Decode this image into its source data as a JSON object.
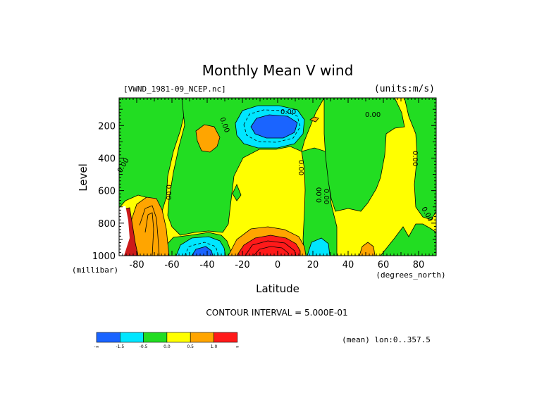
{
  "chart_data": {
    "type": "heatmap",
    "title": "Monthly Mean V wind",
    "dataset_label": "[VWND_1981-09_NCEP.nc]",
    "units_label": "(units:m/s)",
    "xlabel": "Latitude",
    "x_units": "(degrees_north)",
    "ylabel": "Level",
    "y_units": "(millibar)",
    "x_range": [
      -90,
      90
    ],
    "y_range": [
      1000,
      30
    ],
    "y_inverted": true,
    "x_ticks": [
      -80,
      -60,
      -40,
      -20,
      0,
      20,
      40,
      60,
      80
    ],
    "x_tick_labels": [
      "-80",
      "-60",
      "-40",
      "-20",
      "0",
      "20",
      "40",
      "60",
      "80"
    ],
    "y_ticks": [
      200,
      400,
      600,
      800,
      1000
    ],
    "y_tick_labels": [
      "200",
      "400",
      "600",
      "800",
      "1000"
    ],
    "contour_interval_text": "CONTOUR INTERVAL = 5.000E-01",
    "mean_note": "(mean) lon:0..357.5",
    "contour_labels": [
      "0.00",
      "0.00",
      "0.00",
      "0.00",
      "0.00",
      "0.00",
      "0.00",
      "0.00",
      "0.00",
      "0.00"
    ],
    "colorbar": {
      "colors": [
        "#1a64ff",
        "#00e6ff",
        "#22dd22",
        "#ffff00",
        "#ffa500",
        "#ff1a1a"
      ],
      "boundary_labels": [
        "-∞",
        "-1.5",
        "-0.5",
        "0.0",
        "0.5",
        "1.0",
        "∞"
      ]
    },
    "regions": [
      {
        "name": "yellow-field",
        "fill": "#ffff00",
        "approx_value": 0.25
      },
      {
        "name": "green-southpole-column",
        "fill": "#22dd22",
        "approx_value": -0.25
      },
      {
        "name": "green-upper-midlat",
        "fill": "#22dd22",
        "approx_value": -0.25
      },
      {
        "name": "green-lower-south-midlat",
        "fill": "#22dd22",
        "approx_value": -0.25
      },
      {
        "name": "green-tropics-column",
        "fill": "#22dd22",
        "approx_value": -0.25
      },
      {
        "name": "green-north-midlat",
        "fill": "#22dd22",
        "approx_value": -0.25
      },
      {
        "name": "green-north-column",
        "fill": "#22dd22",
        "approx_value": -0.25
      },
      {
        "name": "green-north-polar-lower",
        "fill": "#22dd22",
        "approx_value": -0.25
      },
      {
        "name": "orange-upper-south",
        "fill": "#ffa500",
        "approx_value": 0.75
      },
      {
        "name": "orange-south-polar-low",
        "fill": "#ffa500",
        "approx_value": 0.75
      },
      {
        "name": "orange-equator-low",
        "fill": "#ffa500",
        "approx_value": 0.75
      },
      {
        "name": "orange-north-low",
        "fill": "#ffa500",
        "approx_value": 0.75
      },
      {
        "name": "red-equator-low",
        "fill": "#ff1a1a",
        "approx_value": 1.5
      },
      {
        "name": "red-south-polar",
        "fill": "#cc1a1a",
        "approx_value": 1.5
      },
      {
        "name": "cyan-upper-jet",
        "fill": "#00e6ff",
        "approx_value": -1.0
      },
      {
        "name": "blue-upper-jet",
        "fill": "#1a64ff",
        "approx_value": -2.0
      },
      {
        "name": "cyan-lower-south",
        "fill": "#00e6ff",
        "approx_value": -1.0
      },
      {
        "name": "blue-lower-south",
        "fill": "#1a64ff",
        "approx_value": -2.0
      },
      {
        "name": "cyan-lower-tropics",
        "fill": "#00e6ff",
        "approx_value": -1.0
      },
      {
        "name": "blank-south-pole",
        "fill": "#ffffff",
        "approx_value": null
      }
    ]
  }
}
